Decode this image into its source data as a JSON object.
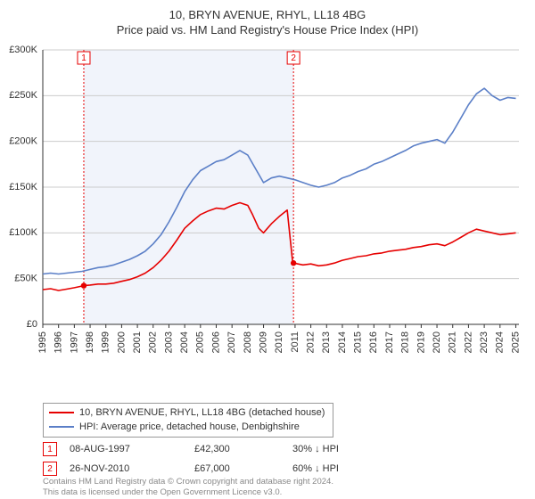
{
  "title_line1": "10, BRYN AVENUE, RHYL, LL18 4BG",
  "title_line2": "Price paid vs. HM Land Registry's House Price Index (HPI)",
  "chart": {
    "type": "line",
    "background_color": "#ffffff",
    "grid_color": "#cccccc",
    "axis_color": "#333333",
    "shaded_band": {
      "x_from": 1997.6,
      "x_to": 2010.9,
      "fill": "#f1f4fb"
    },
    "xlim": [
      1995,
      2025.2
    ],
    "ylim": [
      0,
      300000
    ],
    "yticks": [
      {
        "v": 0,
        "label": "£0"
      },
      {
        "v": 50000,
        "label": "£50K"
      },
      {
        "v": 100000,
        "label": "£100K"
      },
      {
        "v": 150000,
        "label": "£150K"
      },
      {
        "v": 200000,
        "label": "£200K"
      },
      {
        "v": 250000,
        "label": "£250K"
      },
      {
        "v": 300000,
        "label": "£300K"
      }
    ],
    "xticks": [
      1995,
      1996,
      1997,
      1998,
      1999,
      2000,
      2001,
      2002,
      2003,
      2004,
      2005,
      2006,
      2007,
      2008,
      2009,
      2010,
      2011,
      2012,
      2013,
      2014,
      2015,
      2016,
      2017,
      2018,
      2019,
      2020,
      2021,
      2022,
      2023,
      2024,
      2025
    ],
    "title_fontsize": 13,
    "label_fontsize": 11,
    "line_width": 1.6,
    "marker_radius": 3.2,
    "series": [
      {
        "name": "property",
        "label": "10, BRYN AVENUE, RHYL, LL18 4BG (detached house)",
        "color": "#e60000",
        "points": [
          [
            1995,
            38000
          ],
          [
            1995.5,
            39000
          ],
          [
            1996,
            37000
          ],
          [
            1996.5,
            38500
          ],
          [
            1997,
            40000
          ],
          [
            1997.6,
            42300
          ],
          [
            1998,
            43000
          ],
          [
            1998.5,
            44000
          ],
          [
            1999,
            44000
          ],
          [
            1999.5,
            45000
          ],
          [
            2000,
            47000
          ],
          [
            2000.5,
            49000
          ],
          [
            2001,
            52000
          ],
          [
            2001.5,
            56000
          ],
          [
            2002,
            62000
          ],
          [
            2002.5,
            70000
          ],
          [
            2003,
            80000
          ],
          [
            2003.5,
            92000
          ],
          [
            2004,
            105000
          ],
          [
            2004.5,
            113000
          ],
          [
            2005,
            120000
          ],
          [
            2005.5,
            124000
          ],
          [
            2006,
            127000
          ],
          [
            2006.5,
            126000
          ],
          [
            2007,
            130000
          ],
          [
            2007.5,
            133000
          ],
          [
            2008,
            130000
          ],
          [
            2008.3,
            120000
          ],
          [
            2008.7,
            105000
          ],
          [
            2009,
            100000
          ],
          [
            2009.5,
            110000
          ],
          [
            2010,
            118000
          ],
          [
            2010.5,
            125000
          ],
          [
            2010.85,
            67000
          ],
          [
            2010.9,
            67000
          ],
          [
            2011.5,
            65000
          ],
          [
            2012,
            66000
          ],
          [
            2012.5,
            64000
          ],
          [
            2013,
            65000
          ],
          [
            2013.5,
            67000
          ],
          [
            2014,
            70000
          ],
          [
            2014.5,
            72000
          ],
          [
            2015,
            74000
          ],
          [
            2015.5,
            75000
          ],
          [
            2016,
            77000
          ],
          [
            2016.5,
            78000
          ],
          [
            2017,
            80000
          ],
          [
            2017.5,
            81000
          ],
          [
            2018,
            82000
          ],
          [
            2018.5,
            84000
          ],
          [
            2019,
            85000
          ],
          [
            2019.5,
            87000
          ],
          [
            2020,
            88000
          ],
          [
            2020.5,
            86000
          ],
          [
            2021,
            90000
          ],
          [
            2021.5,
            95000
          ],
          [
            2022,
            100000
          ],
          [
            2022.5,
            104000
          ],
          [
            2023,
            102000
          ],
          [
            2023.5,
            100000
          ],
          [
            2024,
            98000
          ],
          [
            2024.5,
            99000
          ],
          [
            2025,
            100000
          ]
        ]
      },
      {
        "name": "hpi",
        "label": "HPI: Average price, detached house, Denbighshire",
        "color": "#5b7fc7",
        "points": [
          [
            1995,
            55000
          ],
          [
            1995.5,
            56000
          ],
          [
            1996,
            55000
          ],
          [
            1996.5,
            56000
          ],
          [
            1997,
            57000
          ],
          [
            1997.5,
            58000
          ],
          [
            1998,
            60000
          ],
          [
            1998.5,
            62000
          ],
          [
            1999,
            63000
          ],
          [
            1999.5,
            65000
          ],
          [
            2000,
            68000
          ],
          [
            2000.5,
            71000
          ],
          [
            2001,
            75000
          ],
          [
            2001.5,
            80000
          ],
          [
            2002,
            88000
          ],
          [
            2002.5,
            98000
          ],
          [
            2003,
            112000
          ],
          [
            2003.5,
            128000
          ],
          [
            2004,
            145000
          ],
          [
            2004.5,
            158000
          ],
          [
            2005,
            168000
          ],
          [
            2005.5,
            173000
          ],
          [
            2006,
            178000
          ],
          [
            2006.5,
            180000
          ],
          [
            2007,
            185000
          ],
          [
            2007.5,
            190000
          ],
          [
            2008,
            185000
          ],
          [
            2008.5,
            170000
          ],
          [
            2009,
            155000
          ],
          [
            2009.5,
            160000
          ],
          [
            2010,
            162000
          ],
          [
            2010.5,
            160000
          ],
          [
            2011,
            158000
          ],
          [
            2011.5,
            155000
          ],
          [
            2012,
            152000
          ],
          [
            2012.5,
            150000
          ],
          [
            2013,
            152000
          ],
          [
            2013.5,
            155000
          ],
          [
            2014,
            160000
          ],
          [
            2014.5,
            163000
          ],
          [
            2015,
            167000
          ],
          [
            2015.5,
            170000
          ],
          [
            2016,
            175000
          ],
          [
            2016.5,
            178000
          ],
          [
            2017,
            182000
          ],
          [
            2017.5,
            186000
          ],
          [
            2018,
            190000
          ],
          [
            2018.5,
            195000
          ],
          [
            2019,
            198000
          ],
          [
            2019.5,
            200000
          ],
          [
            2020,
            202000
          ],
          [
            2020.5,
            198000
          ],
          [
            2021,
            210000
          ],
          [
            2021.5,
            225000
          ],
          [
            2022,
            240000
          ],
          [
            2022.5,
            252000
          ],
          [
            2023,
            258000
          ],
          [
            2023.5,
            250000
          ],
          [
            2024,
            245000
          ],
          [
            2024.5,
            248000
          ],
          [
            2025,
            247000
          ]
        ]
      }
    ],
    "sale_markers": [
      {
        "n": "1",
        "x": 1997.6,
        "y": 42300,
        "color": "#e60000"
      },
      {
        "n": "2",
        "x": 2010.9,
        "y": 67000,
        "color": "#e60000"
      }
    ],
    "sale_marker_box": {
      "width": 14,
      "height": 14,
      "border_width": 1,
      "fontsize": 10,
      "fill": "#ffffff"
    },
    "marker_dash": {
      "color": "#e60000",
      "dasharray": "2,2",
      "width": 1
    }
  },
  "legend": {
    "rows": [
      {
        "label_path": "chart.series.0.label",
        "color": "#e60000"
      },
      {
        "label_path": "chart.series.1.label",
        "color": "#5b7fc7"
      }
    ]
  },
  "sales": [
    {
      "n": "1",
      "date": "08-AUG-1997",
      "price": "£42,300",
      "delta": "30% ↓ HPI",
      "color": "#e60000"
    },
    {
      "n": "2",
      "date": "26-NOV-2010",
      "price": "£67,000",
      "delta": "60% ↓ HPI",
      "color": "#e60000"
    }
  ],
  "attribution": {
    "line1": "Contains HM Land Registry data © Crown copyright and database right 2024.",
    "line2": "This data is licensed under the Open Government Licence v3.0."
  }
}
